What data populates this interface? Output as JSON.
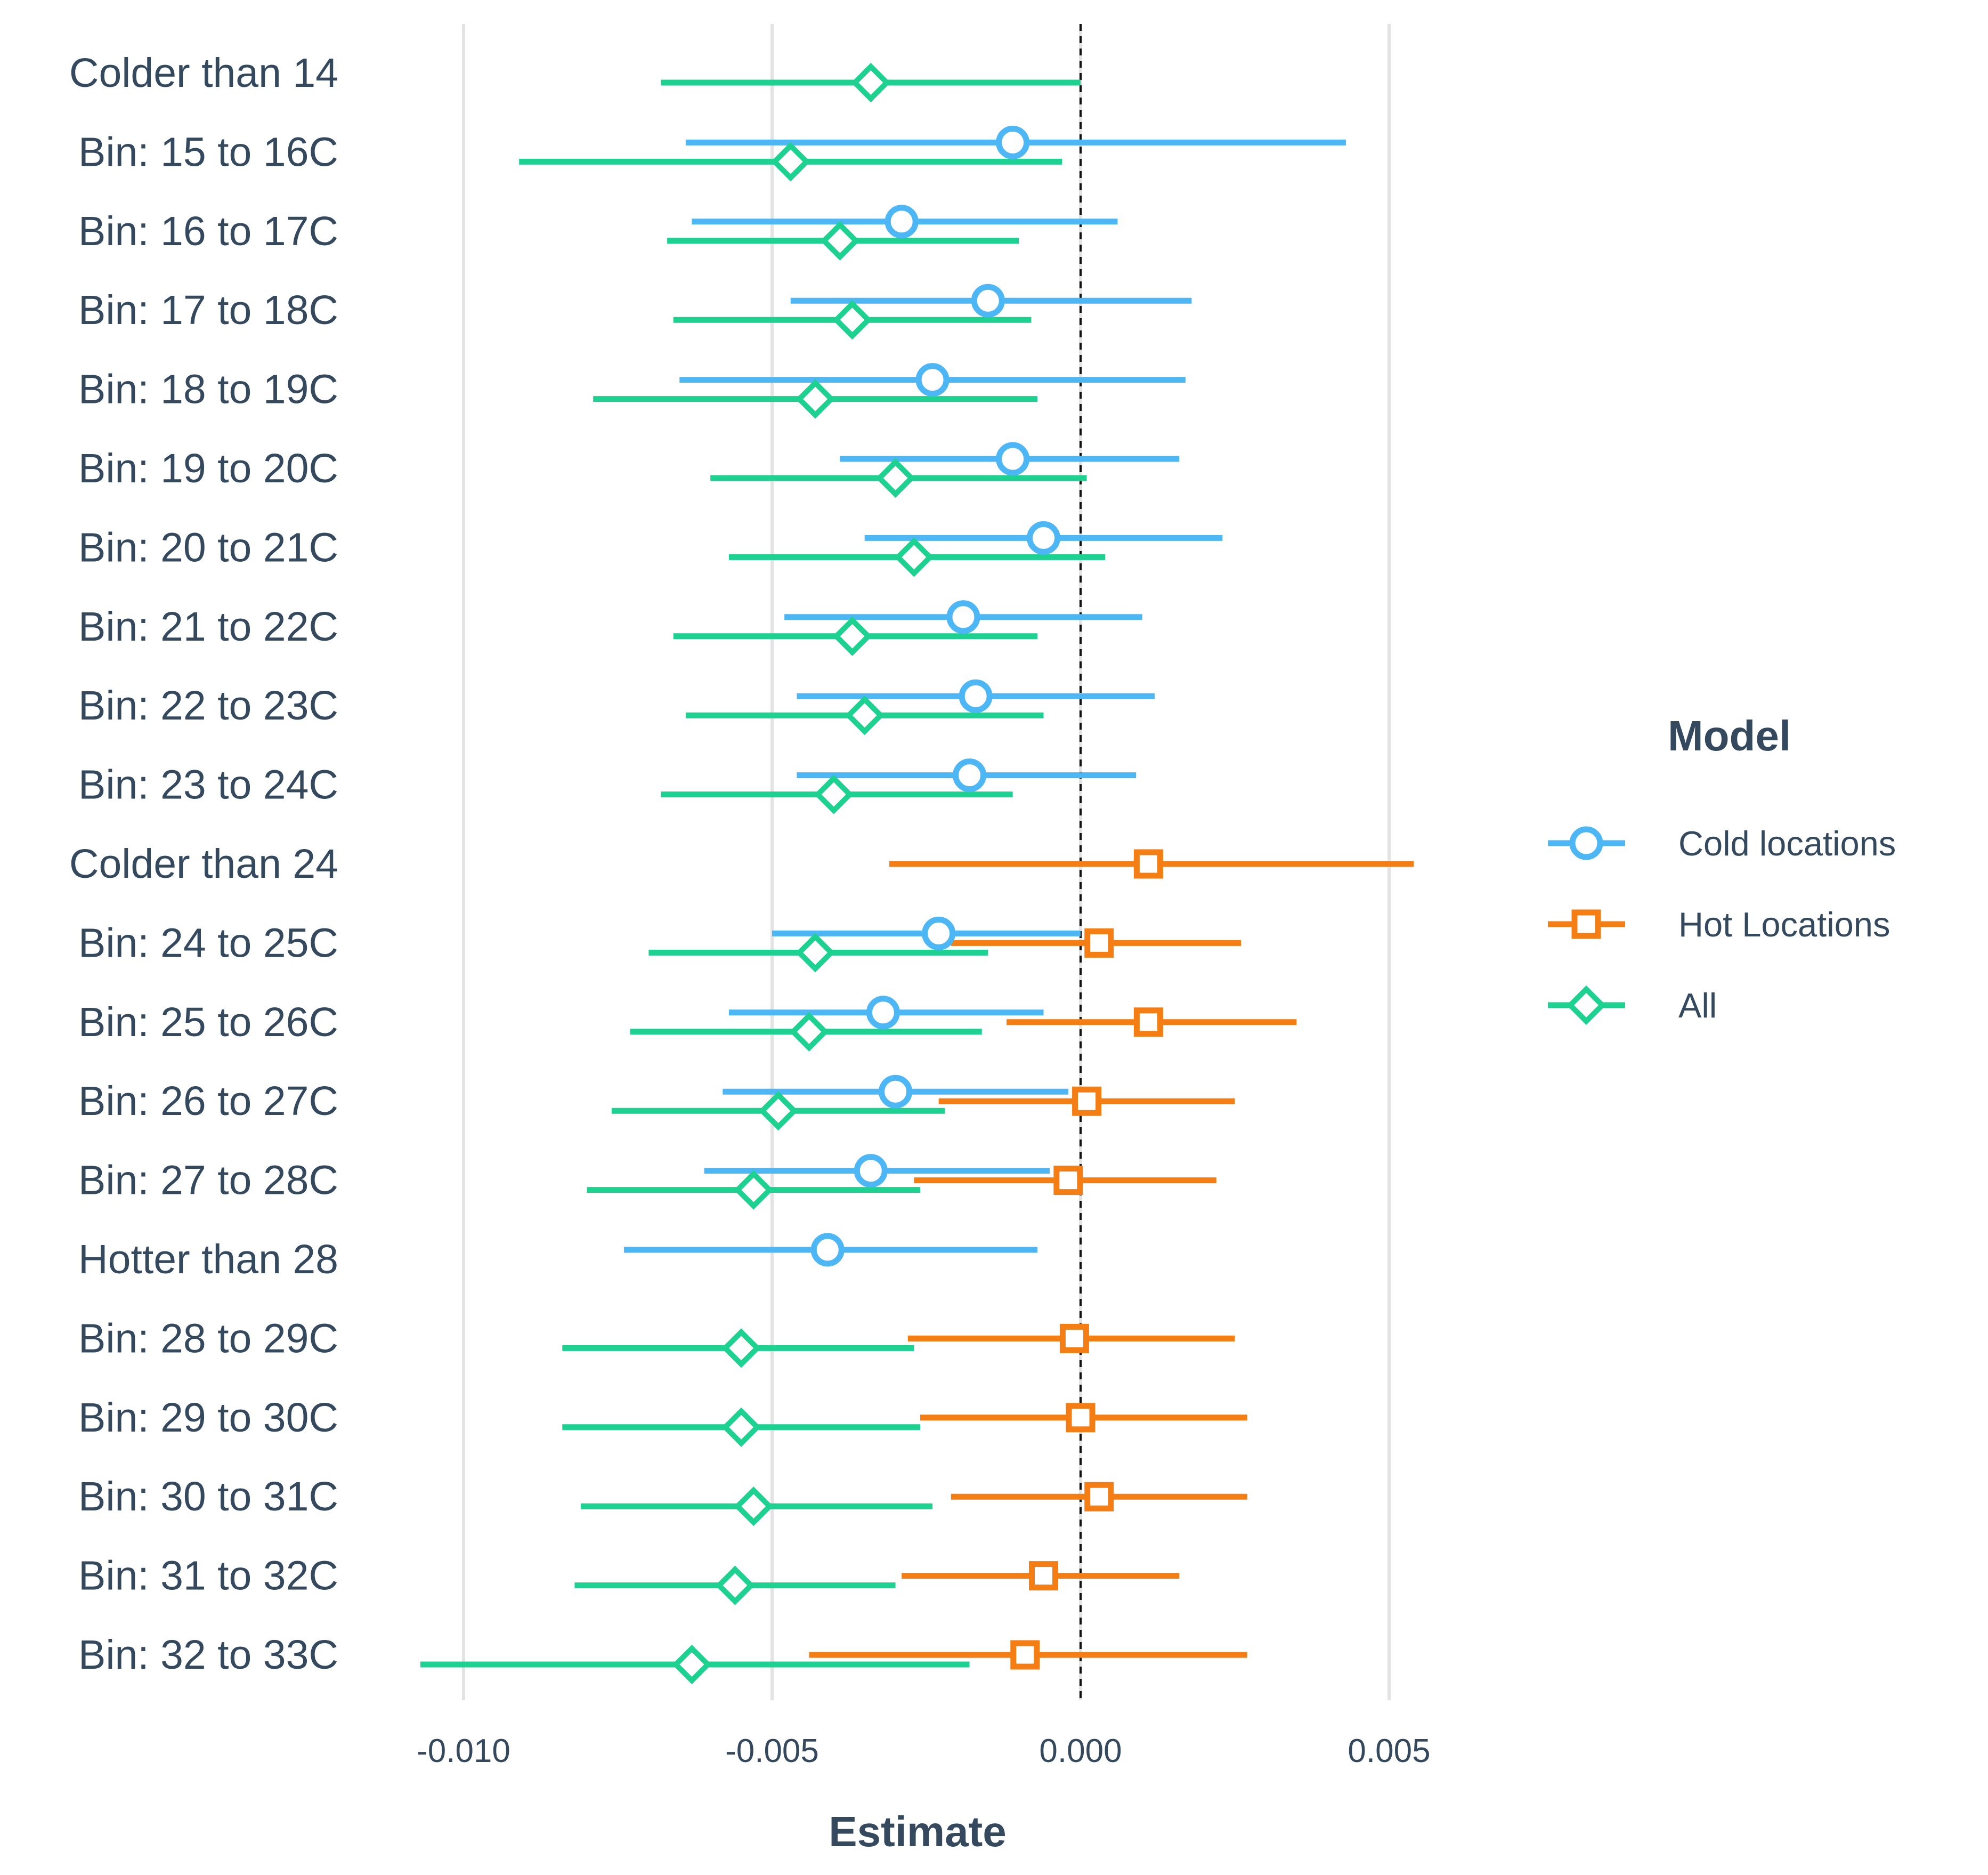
{
  "chart_data": {
    "type": "forest",
    "xlabel": "Estimate",
    "xlim": [
      -0.0119,
      0.0086
    ],
    "xticks": [
      -0.01,
      -0.005,
      0.0,
      0.005
    ],
    "xtick_labels": [
      "-0.010",
      "-0.005",
      "0.000",
      "0.005"
    ],
    "grid": true,
    "reference_line": 0.0,
    "legend": {
      "title": "Model",
      "position": "right",
      "entries": [
        {
          "key": "cold",
          "label": "Cold locations",
          "color": "#4db6f5",
          "marker": "circle"
        },
        {
          "key": "hot",
          "label": "Hot Locations",
          "color": "#f57e14",
          "marker": "square"
        },
        {
          "key": "all",
          "label": "All",
          "color": "#1dd191",
          "marker": "diamond"
        }
      ]
    },
    "categories": [
      "Colder than 14",
      "Bin: 15 to 16C",
      "Bin: 16 to 17C",
      "Bin: 17 to 18C",
      "Bin: 18 to 19C",
      "Bin: 19 to 20C",
      "Bin: 20 to 21C",
      "Bin: 21 to 22C",
      "Bin: 22 to 23C",
      "Bin: 23 to 24C",
      "Colder than 24",
      "Bin: 24 to 25C",
      "Bin: 25 to 26C",
      "Bin: 26 to 27C",
      "Bin: 27 to 28C",
      "Hotter than 28",
      "Bin: 28 to 29C",
      "Bin: 29 to 30C",
      "Bin: 30 to 31C",
      "Bin: 31 to 32C",
      "Bin: 32 to 33C"
    ],
    "series": [
      {
        "name": "Cold locations",
        "key": "cold",
        "points": [
          {
            "category": "Bin: 15 to 16C",
            "estimate": -0.0011,
            "low": -0.0064,
            "high": 0.0043
          },
          {
            "category": "Bin: 16 to 17C",
            "estimate": -0.0029,
            "low": -0.0063,
            "high": 0.0006
          },
          {
            "category": "Bin: 17 to 18C",
            "estimate": -0.0015,
            "low": -0.0047,
            "high": 0.0018
          },
          {
            "category": "Bin: 18 to 19C",
            "estimate": -0.0024,
            "low": -0.0065,
            "high": 0.0017
          },
          {
            "category": "Bin: 19 to 20C",
            "estimate": -0.0011,
            "low": -0.0039,
            "high": 0.0016
          },
          {
            "category": "Bin: 20 to 21C",
            "estimate": -0.0006,
            "low": -0.0035,
            "high": 0.0023
          },
          {
            "category": "Bin: 21 to 22C",
            "estimate": -0.0019,
            "low": -0.0048,
            "high": 0.001
          },
          {
            "category": "Bin: 22 to 23C",
            "estimate": -0.0017,
            "low": -0.0046,
            "high": 0.0012
          },
          {
            "category": "Bin: 23 to 24C",
            "estimate": -0.0018,
            "low": -0.0046,
            "high": 0.0009
          },
          {
            "category": "Bin: 24 to 25C",
            "estimate": -0.0023,
            "low": -0.005,
            "high": 0.0
          },
          {
            "category": "Bin: 25 to 26C",
            "estimate": -0.0032,
            "low": -0.0057,
            "high": -0.0006
          },
          {
            "category": "Bin: 26 to 27C",
            "estimate": -0.003,
            "low": -0.0058,
            "high": -0.0002
          },
          {
            "category": "Bin: 27 to 28C",
            "estimate": -0.0034,
            "low": -0.0061,
            "high": -0.0005
          },
          {
            "category": "Hotter than 28",
            "estimate": -0.0041,
            "low": -0.0074,
            "high": -0.0007
          }
        ]
      },
      {
        "name": "Hot Locations",
        "key": "hot",
        "points": [
          {
            "category": "Colder than 24",
            "estimate": 0.0011,
            "low": -0.0031,
            "high": 0.0054
          },
          {
            "category": "Bin: 24 to 25C",
            "estimate": 0.0003,
            "low": -0.0021,
            "high": 0.0026
          },
          {
            "category": "Bin: 25 to 26C",
            "estimate": 0.0011,
            "low": -0.0012,
            "high": 0.0035
          },
          {
            "category": "Bin: 26 to 27C",
            "estimate": 0.0001,
            "low": -0.0023,
            "high": 0.0025
          },
          {
            "category": "Bin: 27 to 28C",
            "estimate": -0.0002,
            "low": -0.0027,
            "high": 0.0022
          },
          {
            "category": "Bin: 28 to 29C",
            "estimate": -0.0001,
            "low": -0.0028,
            "high": 0.0025
          },
          {
            "category": "Bin: 29 to 30C",
            "estimate": 0.0,
            "low": -0.0026,
            "high": 0.0027
          },
          {
            "category": "Bin: 30 to 31C",
            "estimate": 0.0003,
            "low": -0.0021,
            "high": 0.0027
          },
          {
            "category": "Bin: 31 to 32C",
            "estimate": -0.0006,
            "low": -0.0029,
            "high": 0.0016
          },
          {
            "category": "Bin: 32 to 33C",
            "estimate": -0.0009,
            "low": -0.0044,
            "high": 0.0027
          }
        ]
      },
      {
        "name": "All",
        "key": "all",
        "points": [
          {
            "category": "Colder than 14",
            "estimate": -0.0034,
            "low": -0.0068,
            "high": 0.0
          },
          {
            "category": "Bin: 15 to 16C",
            "estimate": -0.0047,
            "low": -0.0091,
            "high": -0.0003
          },
          {
            "category": "Bin: 16 to 17C",
            "estimate": -0.0039,
            "low": -0.0067,
            "high": -0.001
          },
          {
            "category": "Bin: 17 to 18C",
            "estimate": -0.0037,
            "low": -0.0066,
            "high": -0.0008
          },
          {
            "category": "Bin: 18 to 19C",
            "estimate": -0.0043,
            "low": -0.0079,
            "high": -0.0007
          },
          {
            "category": "Bin: 19 to 20C",
            "estimate": -0.003,
            "low": -0.006,
            "high": 0.0001
          },
          {
            "category": "Bin: 20 to 21C",
            "estimate": -0.0027,
            "low": -0.0057,
            "high": 0.0004
          },
          {
            "category": "Bin: 21 to 22C",
            "estimate": -0.0037,
            "low": -0.0066,
            "high": -0.0007
          },
          {
            "category": "Bin: 22 to 23C",
            "estimate": -0.0035,
            "low": -0.0064,
            "high": -0.0006
          },
          {
            "category": "Bin: 23 to 24C",
            "estimate": -0.004,
            "low": -0.0068,
            "high": -0.0011
          },
          {
            "category": "Bin: 24 to 25C",
            "estimate": -0.0043,
            "low": -0.007,
            "high": -0.0015
          },
          {
            "category": "Bin: 25 to 26C",
            "estimate": -0.0044,
            "low": -0.0073,
            "high": -0.0016
          },
          {
            "category": "Bin: 26 to 27C",
            "estimate": -0.0049,
            "low": -0.0076,
            "high": -0.0022
          },
          {
            "category": "Bin: 27 to 28C",
            "estimate": -0.0053,
            "low": -0.008,
            "high": -0.0026
          },
          {
            "category": "Bin: 28 to 29C",
            "estimate": -0.0055,
            "low": -0.0084,
            "high": -0.0027
          },
          {
            "category": "Bin: 29 to 30C",
            "estimate": -0.0055,
            "low": -0.0084,
            "high": -0.0026
          },
          {
            "category": "Bin: 30 to 31C",
            "estimate": -0.0053,
            "low": -0.0081,
            "high": -0.0024
          },
          {
            "category": "Bin: 31 to 32C",
            "estimate": -0.0056,
            "low": -0.0082,
            "high": -0.003
          },
          {
            "category": "Bin: 32 to 33C",
            "estimate": -0.0063,
            "low": -0.0107,
            "high": -0.0018
          }
        ]
      }
    ]
  }
}
